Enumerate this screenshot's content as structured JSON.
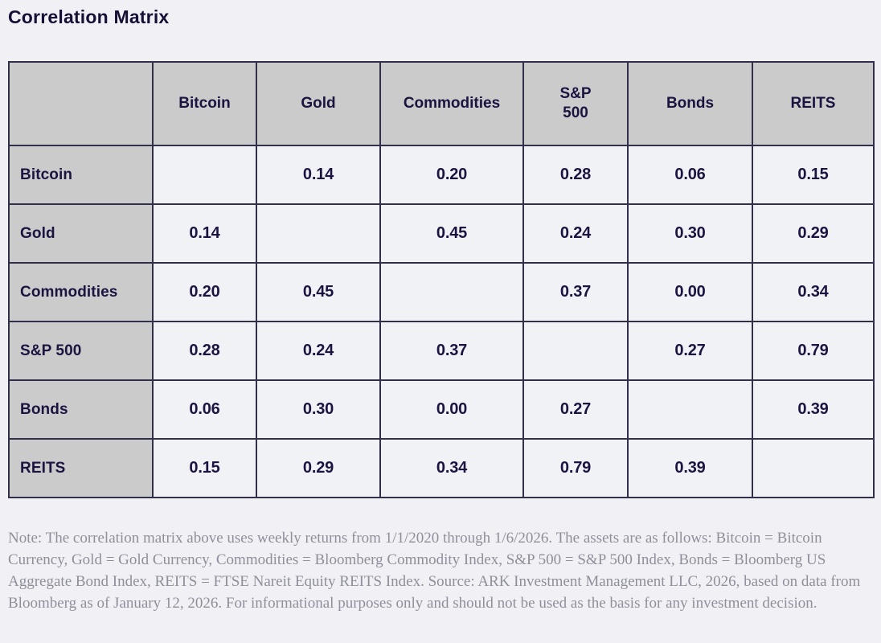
{
  "title": "Correlation Matrix",
  "table": {
    "corner": "",
    "columns": [
      "Bitcoin",
      "Gold",
      "Commodities",
      "S&P\n500",
      "Bonds",
      "REITS"
    ],
    "rows": [
      {
        "label": "Bitcoin",
        "values": [
          "",
          "0.14",
          "0.20",
          "0.28",
          "0.06",
          "0.15"
        ]
      },
      {
        "label": "Gold",
        "values": [
          "0.14",
          "",
          "0.45",
          "0.24",
          "0.30",
          "0.29"
        ]
      },
      {
        "label": "Commodities",
        "values": [
          "0.20",
          "0.45",
          "",
          "0.37",
          "0.00",
          "0.34"
        ]
      },
      {
        "label": "S&P 500",
        "values": [
          "0.28",
          "0.24",
          "0.37",
          "",
          "0.27",
          "0.79"
        ]
      },
      {
        "label": "Bonds",
        "values": [
          "0.06",
          "0.30",
          "0.00",
          "0.27",
          "",
          "0.39"
        ]
      },
      {
        "label": "REITS",
        "values": [
          "0.15",
          "0.29",
          "0.34",
          "0.79",
          "0.39",
          ""
        ]
      }
    ]
  },
  "note": "Note: The correlation matrix above uses weekly returns from 1/1/2020 through 1/6/2026. The assets are as follows: Bitcoin = Bitcoin Currency, Gold = Gold Currency, Commodities = Bloomberg Commodity Index, S&P 500 = S&P 500 Index, Bonds = Bloomberg US Aggregate Bond Index, REITS = FTSE Nareit Equity REITS Index. Source: ARK Investment Management LLC, 2026, based on data from Bloomberg as of January 12, 2026. For informational purposes only and should not be used as the basis for any investment decision.",
  "colors": {
    "page_background": "#f1f1f5",
    "header_cell_background": "#cbcbcb",
    "data_cell_background": "#f1f2f6",
    "border": "#30304a",
    "text_dark": "#1b1440",
    "note_text": "#8f8f9b"
  },
  "chart_data": {
    "type": "table",
    "title": "Correlation Matrix",
    "categories": [
      "Bitcoin",
      "Gold",
      "Commodities",
      "S&P 500",
      "Bonds",
      "REITS"
    ],
    "matrix": [
      [
        null,
        0.14,
        0.2,
        0.28,
        0.06,
        0.15
      ],
      [
        0.14,
        null,
        0.45,
        0.24,
        0.3,
        0.29
      ],
      [
        0.2,
        0.45,
        null,
        0.37,
        0.0,
        0.34
      ],
      [
        0.28,
        0.24,
        0.37,
        null,
        0.27,
        0.79
      ],
      [
        0.06,
        0.3,
        0.0,
        0.27,
        null,
        0.39
      ],
      [
        0.15,
        0.29,
        0.34,
        0.79,
        0.39,
        null
      ]
    ],
    "diagonal_cells": "blank",
    "legend_position": "none",
    "grid": "on",
    "note": "Weekly returns 1/1/2020 through 1/6/2026; Source: ARK Investment Management LLC, 2026, based on data from Bloomberg as of January 12, 2026."
  }
}
